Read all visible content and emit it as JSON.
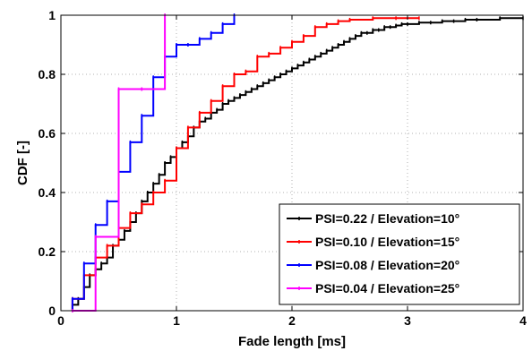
{
  "chart_data": {
    "type": "line",
    "step": true,
    "xlabel": "Fade length [ms]",
    "ylabel": "CDF [-]",
    "xlim": [
      0,
      4
    ],
    "ylim": [
      0,
      1
    ],
    "xticks": [
      0,
      1,
      2,
      3,
      4
    ],
    "xtick_labels": [
      "0",
      "1",
      "2",
      "3",
      "4"
    ],
    "yticks": [
      0,
      0.2,
      0.4,
      0.6,
      0.8,
      1
    ],
    "ytick_labels": [
      "0",
      "0.2",
      "0.4",
      "0.6",
      "0.8",
      "1"
    ],
    "grid": true,
    "legend_position": "bottom-right",
    "series": [
      {
        "name": "PSI=0.22 / Elevation=10°",
        "color": "#000000",
        "x": [
          0.1,
          0.15,
          0.2,
          0.25,
          0.3,
          0.35,
          0.4,
          0.45,
          0.5,
          0.55,
          0.6,
          0.65,
          0.7,
          0.75,
          0.8,
          0.85,
          0.9,
          0.95,
          1.0,
          1.05,
          1.1,
          1.15,
          1.2,
          1.25,
          1.3,
          1.35,
          1.4,
          1.45,
          1.5,
          1.55,
          1.6,
          1.65,
          1.7,
          1.75,
          1.8,
          1.85,
          1.9,
          1.95,
          2.0,
          2.05,
          2.1,
          2.15,
          2.2,
          2.25,
          2.3,
          2.35,
          2.4,
          2.45,
          2.5,
          2.55,
          2.6,
          2.65,
          2.7,
          2.75,
          2.8,
          2.85,
          2.9,
          2.95,
          3.0,
          3.1,
          3.2,
          3.3,
          3.4,
          3.5,
          3.6,
          3.8,
          4.0
        ],
        "y": [
          0.02,
          0.04,
          0.08,
          0.12,
          0.14,
          0.16,
          0.18,
          0.22,
          0.24,
          0.27,
          0.3,
          0.33,
          0.37,
          0.4,
          0.43,
          0.46,
          0.5,
          0.52,
          0.55,
          0.57,
          0.59,
          0.62,
          0.64,
          0.65,
          0.67,
          0.68,
          0.7,
          0.71,
          0.72,
          0.73,
          0.74,
          0.75,
          0.76,
          0.77,
          0.78,
          0.79,
          0.8,
          0.81,
          0.82,
          0.83,
          0.84,
          0.85,
          0.86,
          0.87,
          0.88,
          0.89,
          0.9,
          0.91,
          0.92,
          0.93,
          0.94,
          0.94,
          0.95,
          0.95,
          0.96,
          0.96,
          0.965,
          0.97,
          0.97,
          0.975,
          0.975,
          0.98,
          0.98,
          0.985,
          0.985,
          0.99,
          0.99
        ]
      },
      {
        "name": "PSI=0.10 / Elevation=15°",
        "color": "#ff0000",
        "x": [
          0.1,
          0.2,
          0.3,
          0.4,
          0.5,
          0.6,
          0.7,
          0.8,
          0.9,
          1.0,
          1.1,
          1.2,
          1.3,
          1.4,
          1.5,
          1.6,
          1.7,
          1.8,
          1.9,
          2.0,
          2.1,
          2.2,
          2.3,
          2.4,
          2.5,
          2.7,
          2.9,
          3.1
        ],
        "y": [
          0.04,
          0.12,
          0.18,
          0.22,
          0.28,
          0.33,
          0.36,
          0.4,
          0.44,
          0.55,
          0.62,
          0.67,
          0.71,
          0.76,
          0.8,
          0.81,
          0.86,
          0.87,
          0.89,
          0.91,
          0.93,
          0.96,
          0.97,
          0.98,
          0.985,
          0.99,
          0.99,
          0.99
        ]
      },
      {
        "name": "PSI=0.08 / Elevation=20°",
        "color": "#0000ff",
        "x": [
          0.1,
          0.2,
          0.3,
          0.4,
          0.5,
          0.6,
          0.7,
          0.8,
          0.9,
          1.0,
          1.1,
          1.2,
          1.3,
          1.4,
          1.5
        ],
        "y": [
          0.04,
          0.16,
          0.29,
          0.37,
          0.47,
          0.57,
          0.66,
          0.79,
          0.86,
          0.9,
          0.9,
          0.92,
          0.94,
          0.97,
          1.0
        ]
      },
      {
        "name": "PSI=0.04 / Elevation=25°",
        "color": "#ff00ff",
        "x": [
          0.1,
          0.3,
          0.5,
          0.7,
          0.9
        ],
        "y": [
          0.0,
          0.25,
          0.75,
          0.75,
          1.0
        ]
      }
    ]
  }
}
